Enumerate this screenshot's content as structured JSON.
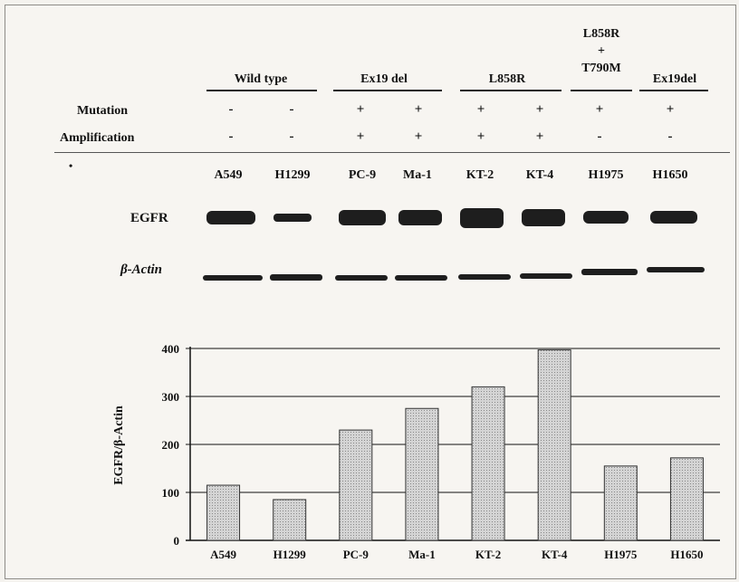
{
  "groups": [
    {
      "label": "Wild type"
    },
    {
      "label": "Ex19 del"
    },
    {
      "label": "L858R"
    },
    {
      "label": "L858R\n+\nT790M"
    },
    {
      "label": "Ex19del"
    }
  ],
  "rows": {
    "mutation": {
      "label": "Mutation",
      "values": [
        "-",
        "-",
        "+",
        "+",
        "+",
        "+",
        "+",
        "+"
      ]
    },
    "amplification": {
      "label": "Amplification",
      "values": [
        "-",
        "-",
        "+",
        "+",
        "+",
        "+",
        "-",
        "-"
      ]
    }
  },
  "blot": {
    "bullet": "•",
    "cell_lines": [
      "A549",
      "H1299",
      "PC-9",
      "Ma-1",
      "KT-2",
      "KT-4",
      "H1975",
      "H1650"
    ],
    "egfr_label": "EGFR",
    "actin_label": "β-Actin"
  },
  "colors": {
    "bar_fill": "#cfcfcf",
    "band": "#1e1e1e",
    "axis": "#111111"
  },
  "chart_data": {
    "type": "bar",
    "categories": [
      "A549",
      "H1299",
      "PC-9",
      "Ma-1",
      "KT-2",
      "KT-4",
      "H1975",
      "H1650"
    ],
    "values": [
      115,
      85,
      230,
      275,
      320,
      397,
      155,
      172
    ],
    "ylabel": "EGFR/β-Actin",
    "xlabel": "",
    "ylim": [
      0,
      400
    ],
    "yticks": [
      0,
      100,
      200,
      300,
      400
    ],
    "grid": true
  }
}
